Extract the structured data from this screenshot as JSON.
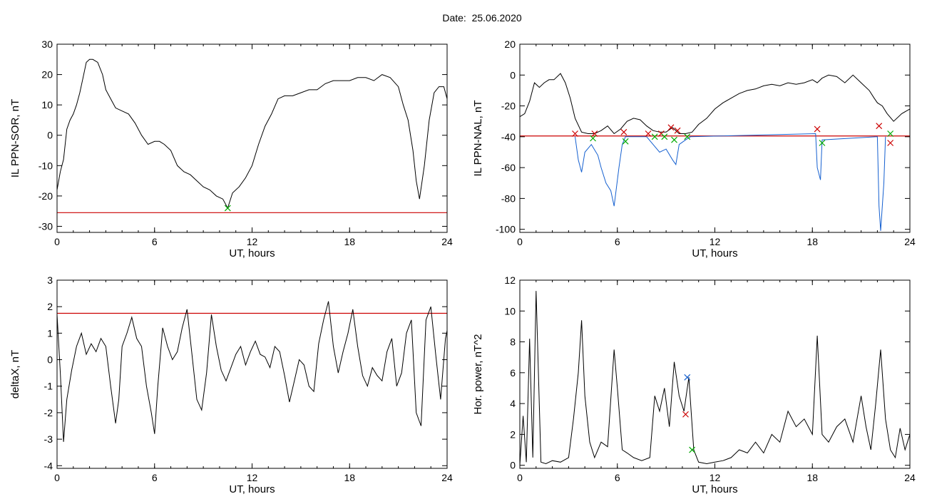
{
  "header": {
    "date_label": "Date:",
    "date_value": "25.06.2020"
  },
  "chart_data": [
    {
      "type": "line",
      "panel": "top-left",
      "xlabel": "UT, hours",
      "ylabel": "IL PPN-SOR, nT",
      "xlim": [
        0,
        24
      ],
      "ylim": [
        -32,
        30
      ],
      "xticks": [
        0,
        6,
        12,
        18,
        24
      ],
      "yticks": [
        -30,
        -20,
        -10,
        0,
        10,
        20,
        30
      ],
      "series": [
        {
          "color": "#000000",
          "x": [
            0,
            0.2,
            0.4,
            0.6,
            0.8,
            1.0,
            1.2,
            1.4,
            1.6,
            1.8,
            2.0,
            2.2,
            2.5,
            2.8,
            3.0,
            3.3,
            3.6,
            4.0,
            4.4,
            4.8,
            5.2,
            5.6,
            6.0,
            6.3,
            6.6,
            7.0,
            7.4,
            7.8,
            8.2,
            8.6,
            9.0,
            9.4,
            9.8,
            10.2,
            10.5,
            10.8,
            11.2,
            11.6,
            12.0,
            12.4,
            12.8,
            13.2,
            13.6,
            14.0,
            14.5,
            15.0,
            15.5,
            16.0,
            16.5,
            17.0,
            17.5,
            18.0,
            18.5,
            19.0,
            19.5,
            20.0,
            20.5,
            21.0,
            21.3,
            21.6,
            21.9,
            22.1,
            22.3,
            22.6,
            22.9,
            23.2,
            23.5,
            23.8,
            24.0
          ],
          "y": [
            -18,
            -12,
            -8,
            2,
            5,
            7,
            10,
            14,
            19,
            24,
            25,
            25,
            24,
            20,
            15,
            12,
            9,
            8,
            7,
            4,
            0,
            -3,
            -2,
            -2,
            -3,
            -5,
            -10,
            -12,
            -13,
            -15,
            -17,
            -18,
            -20,
            -21,
            -24,
            -19,
            -17,
            -14,
            -10,
            -3,
            3,
            7,
            12,
            13,
            13,
            14,
            15,
            15,
            17,
            18,
            18,
            18,
            19,
            19,
            18,
            20,
            19,
            16,
            10,
            5,
            -5,
            -15,
            -21,
            -10,
            5,
            14,
            16,
            16,
            12
          ]
        }
      ],
      "threshold": {
        "color": "#cc0000",
        "y": -25.5
      },
      "markers": [
        {
          "color": "#00aa00",
          "x": 10.5,
          "y": -24
        }
      ]
    },
    {
      "type": "line",
      "panel": "top-right",
      "xlabel": "UT, hours",
      "ylabel": "IL PPN-NAL, nT",
      "xlim": [
        0,
        24
      ],
      "ylim": [
        -102,
        20
      ],
      "xticks": [
        0,
        6,
        12,
        18,
        24
      ],
      "yticks": [
        -100,
        -80,
        -60,
        -40,
        -20,
        0,
        20
      ],
      "series": [
        {
          "color": "#000000",
          "x": [
            0,
            0.3,
            0.6,
            0.9,
            1.2,
            1.5,
            1.8,
            2.1,
            2.5,
            2.8,
            3.1,
            3.4,
            3.8,
            4.2,
            4.6,
            5.0,
            5.4,
            5.8,
            6.2,
            6.6,
            7.0,
            7.4,
            7.8,
            8.2,
            8.6,
            9.0,
            9.4,
            9.8,
            10.2,
            10.6,
            11.0,
            11.5,
            12.0,
            12.5,
            13.0,
            13.5,
            14.0,
            14.5,
            15.0,
            15.5,
            16.0,
            16.5,
            17.0,
            17.5,
            18.0,
            18.3,
            18.6,
            19.0,
            19.5,
            20.0,
            20.5,
            21.0,
            21.5,
            21.8,
            22.0,
            22.3,
            22.6,
            23.0,
            23.5,
            24.0
          ],
          "y": [
            -27,
            -25,
            -17,
            -5,
            -8,
            -5,
            -3,
            -3,
            1,
            -5,
            -15,
            -28,
            -37,
            -38,
            -38,
            -36,
            -33,
            -38,
            -35,
            -30,
            -28,
            -29,
            -33,
            -36,
            -37,
            -37,
            -34,
            -38,
            -38,
            -37,
            -32,
            -28,
            -22,
            -18,
            -15,
            -12,
            -10,
            -9,
            -7,
            -6,
            -7,
            -5,
            -6,
            -5,
            -3,
            -5,
            -2,
            0,
            -1,
            -5,
            0,
            -5,
            -10,
            -15,
            -18,
            -20,
            -25,
            -30,
            -25,
            -22
          ]
        },
        {
          "color": "#1560d0",
          "x": [
            3.4,
            3.6,
            3.8,
            4.0,
            4.4,
            4.8,
            5.0,
            5.3,
            5.6,
            5.8,
            6.1,
            6.3,
            6.5,
            7.8,
            8.2,
            8.6,
            9.0,
            9.4,
            9.6,
            9.8,
            10.2,
            10.5,
            18.2,
            18.3,
            18.5,
            18.6,
            22.0,
            22.1,
            22.2,
            22.4,
            22.5
          ],
          "y": [
            -40,
            -55,
            -63,
            -50,
            -45,
            -52,
            -60,
            -70,
            -75,
            -85,
            -60,
            -45,
            -40,
            -40,
            -45,
            -50,
            -48,
            -55,
            -58,
            -45,
            -42,
            -40,
            -38,
            -60,
            -68,
            -42,
            -40,
            -85,
            -101,
            -70,
            -40
          ]
        }
      ],
      "threshold": {
        "color": "#cc0000",
        "y": -39.5
      },
      "markers": [
        {
          "color": "#cc0000",
          "x": 3.4,
          "y": -38
        },
        {
          "color": "#cc0000",
          "x": 4.6,
          "y": -38
        },
        {
          "color": "#cc0000",
          "x": 6.4,
          "y": -37
        },
        {
          "color": "#cc0000",
          "x": 7.9,
          "y": -38
        },
        {
          "color": "#cc0000",
          "x": 8.7,
          "y": -38
        },
        {
          "color": "#cc0000",
          "x": 9.3,
          "y": -34
        },
        {
          "color": "#cc0000",
          "x": 9.7,
          "y": -36
        },
        {
          "color": "#cc0000",
          "x": 18.3,
          "y": -35
        },
        {
          "color": "#cc0000",
          "x": 22.1,
          "y": -33
        },
        {
          "color": "#cc0000",
          "x": 22.8,
          "y": -44
        },
        {
          "color": "#00aa00",
          "x": 4.5,
          "y": -41
        },
        {
          "color": "#00aa00",
          "x": 6.5,
          "y": -43
        },
        {
          "color": "#00aa00",
          "x": 8.3,
          "y": -40
        },
        {
          "color": "#00aa00",
          "x": 8.9,
          "y": -40
        },
        {
          "color": "#00aa00",
          "x": 9.5,
          "y": -42
        },
        {
          "color": "#00aa00",
          "x": 10.3,
          "y": -40
        },
        {
          "color": "#00aa00",
          "x": 18.6,
          "y": -44
        },
        {
          "color": "#00aa00",
          "x": 22.8,
          "y": -38
        }
      ]
    },
    {
      "type": "line",
      "panel": "bottom-left",
      "xlabel": "UT, hours",
      "ylabel": "deltaX, nT",
      "xlim": [
        0,
        24
      ],
      "ylim": [
        -4.1,
        3
      ],
      "xticks": [
        0,
        6,
        12,
        18,
        24
      ],
      "yticks": [
        -4,
        -3,
        -2,
        -1,
        0,
        1,
        2,
        3
      ],
      "series": [
        {
          "color": "#000000",
          "x": [
            0,
            0.2,
            0.4,
            0.6,
            0.9,
            1.2,
            1.5,
            1.8,
            2.1,
            2.4,
            2.7,
            3.0,
            3.3,
            3.6,
            3.8,
            4.0,
            4.3,
            4.6,
            4.9,
            5.2,
            5.5,
            5.8,
            6.0,
            6.2,
            6.5,
            6.8,
            7.1,
            7.4,
            7.7,
            8.0,
            8.3,
            8.6,
            8.9,
            9.2,
            9.5,
            9.8,
            10.1,
            10.4,
            10.7,
            11.0,
            11.3,
            11.6,
            11.9,
            12.2,
            12.5,
            12.8,
            13.1,
            13.4,
            13.7,
            14.0,
            14.3,
            14.6,
            14.9,
            15.2,
            15.5,
            15.8,
            16.1,
            16.4,
            16.7,
            17.0,
            17.3,
            17.6,
            17.9,
            18.2,
            18.5,
            18.8,
            19.1,
            19.4,
            19.7,
            20.0,
            20.3,
            20.6,
            20.9,
            21.2,
            21.5,
            21.8,
            22.1,
            22.4,
            22.7,
            23.0,
            23.3,
            23.6,
            23.9,
            24.0
          ],
          "y": [
            1.7,
            -0.5,
            -3.1,
            -1.5,
            -0.4,
            0.5,
            1.0,
            0.2,
            0.6,
            0.3,
            0.8,
            0.5,
            -1.0,
            -2.4,
            -1.5,
            0.5,
            1.0,
            1.6,
            0.8,
            0.5,
            -1.0,
            -2.0,
            -2.8,
            -1.0,
            1.2,
            0.5,
            0,
            0.3,
            1.2,
            1.9,
            0.2,
            -1.5,
            -1.9,
            -0.5,
            1.7,
            0.5,
            -0.4,
            -0.8,
            -0.3,
            0.2,
            0.5,
            -0.2,
            0.3,
            0.7,
            0.2,
            0.1,
            -0.3,
            0.5,
            0.3,
            -0.6,
            -1.6,
            -0.8,
            0,
            -0.2,
            -1.0,
            -1.2,
            0.6,
            1.5,
            2.2,
            0.5,
            -0.5,
            0.3,
            1.0,
            1.9,
            0.5,
            -0.6,
            -1.0,
            -0.3,
            -0.6,
            -0.8,
            0.3,
            0.8,
            -1.0,
            -0.5,
            1.0,
            1.5,
            -2.0,
            -2.5,
            1.5,
            2.0,
            0.2,
            -1.5,
            0.8,
            1.1
          ]
        }
      ],
      "threshold": {
        "color": "#cc0000",
        "y": 1.75
      }
    },
    {
      "type": "line",
      "panel": "bottom-right",
      "xlabel": "UT, hours",
      "ylabel": "Hor. power, nT^2",
      "xlim": [
        0,
        24
      ],
      "ylim": [
        -0.2,
        12
      ],
      "xticks": [
        0,
        6,
        12,
        18,
        24
      ],
      "yticks": [
        0,
        2,
        4,
        6,
        8,
        10,
        12
      ],
      "series": [
        {
          "color": "#000000",
          "x": [
            0,
            0.2,
            0.4,
            0.6,
            0.8,
            1.0,
            1.3,
            1.6,
            2.0,
            2.5,
            3.0,
            3.3,
            3.6,
            3.8,
            4.0,
            4.3,
            4.6,
            5.0,
            5.4,
            5.8,
            6.0,
            6.3,
            6.6,
            7.0,
            7.5,
            8.0,
            8.3,
            8.6,
            8.9,
            9.2,
            9.5,
            9.8,
            10.1,
            10.4,
            10.7,
            11.0,
            11.5,
            12.0,
            12.5,
            13.0,
            13.5,
            14.0,
            14.5,
            15.0,
            15.5,
            16.0,
            16.5,
            17.0,
            17.5,
            18.0,
            18.3,
            18.6,
            19.0,
            19.5,
            20.0,
            20.5,
            21.0,
            21.3,
            21.6,
            21.9,
            22.2,
            22.5,
            22.8,
            23.1,
            23.4,
            23.7,
            24.0
          ],
          "y": [
            0,
            3.2,
            0.2,
            8.2,
            0.5,
            11.3,
            0.2,
            0.1,
            0.3,
            0.2,
            0.5,
            3.0,
            6.0,
            9.4,
            4.5,
            1.5,
            0.5,
            1.5,
            1.2,
            7.5,
            5.0,
            1.0,
            0.8,
            0.5,
            0.3,
            0.5,
            4.5,
            3.5,
            5.0,
            2.5,
            6.7,
            4.5,
            3.5,
            5.7,
            1.0,
            0.2,
            0.1,
            0.2,
            0.3,
            0.5,
            1.0,
            0.8,
            1.5,
            0.8,
            2.0,
            1.5,
            3.5,
            2.5,
            3.0,
            2.0,
            8.4,
            2.0,
            1.5,
            2.5,
            3.0,
            1.5,
            4.5,
            2.5,
            1.0,
            4.0,
            7.5,
            3.0,
            1.0,
            0.5,
            2.4,
            1.0,
            2.0
          ]
        }
      ],
      "markers": [
        {
          "color": "#1560d0",
          "x": 10.3,
          "y": 5.7
        },
        {
          "color": "#cc0000",
          "x": 10.2,
          "y": 3.3
        },
        {
          "color": "#00aa00",
          "x": 10.6,
          "y": 1.0
        }
      ]
    }
  ]
}
